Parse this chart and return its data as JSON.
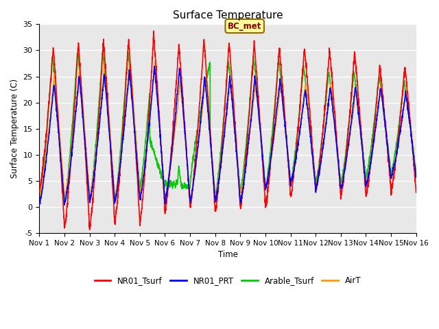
{
  "title": "Surface Temperature",
  "ylabel": "Surface Temperature (C)",
  "xlabel": "Time",
  "ylim": [
    -5,
    35
  ],
  "xlim": [
    0,
    15
  ],
  "bg_color": "#e8e8e8",
  "grid_color": "white",
  "annotation_text": "BC_met",
  "annotation_bg": "#ffff99",
  "annotation_border": "#996600",
  "series_colors": {
    "NR01_Tsurf": "#ff0000",
    "NR01_PRT": "#0000ff",
    "Arable_Tsurf": "#00cc00",
    "AirT": "#ff9900"
  },
  "xtick_labels": [
    "Nov 1",
    "Nov 2",
    "Nov 3",
    "Nov 4",
    "Nov 5",
    "Nov 6",
    "Nov 7",
    "Nov 8",
    "Nov 9",
    "Nov 10",
    "Nov 11",
    "Nov 12",
    "Nov 13",
    "Nov 14",
    "Nov 15",
    "Nov 16"
  ],
  "ytick_values": [
    -5,
    0,
    5,
    10,
    15,
    20,
    25,
    30,
    35
  ],
  "linewidth": 1.2
}
